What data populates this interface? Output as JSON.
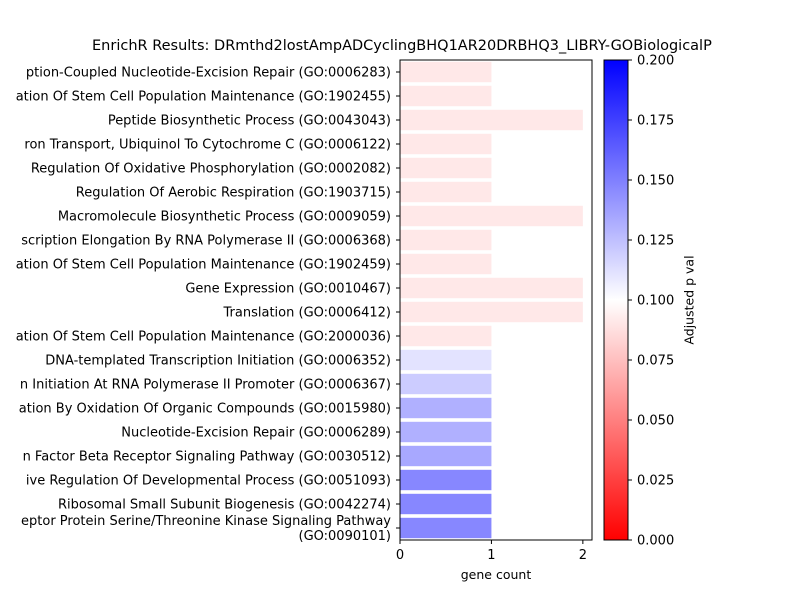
{
  "chart_data": {
    "type": "bar",
    "orientation": "horizontal",
    "title": "EnrichR Results: DRmthd2lostAmpADCyclingBHQ1AR20DRBHQ3_LIBRY-GOBiologicalP",
    "xlabel": "gene count",
    "xlim": [
      0,
      2.1
    ],
    "xticks": [
      0,
      1,
      2
    ],
    "colorbar": {
      "label": "Adjusted p val",
      "range": [
        0,
        0.2
      ],
      "ticks": [
        "0.000",
        "0.025",
        "0.050",
        "0.075",
        "0.100",
        "0.125",
        "0.150",
        "0.175",
        "0.200"
      ],
      "colormap": "bwr_r",
      "colors": {
        "low": "#ff0000",
        "mid": "#ffffff",
        "high": "#0000ff"
      }
    },
    "categories": [
      "ption-Coupled Nucleotide-Excision Repair (GO:0006283)",
      "ation Of Stem Cell Population Maintenance (GO:1902455)",
      "Peptide Biosynthetic Process (GO:0043043)",
      "ron Transport, Ubiquinol To Cytochrome C (GO:0006122)",
      "Regulation Of Oxidative Phosphorylation (GO:0002082)",
      "Regulation Of Aerobic Respiration (GO:1903715)",
      "Macromolecule Biosynthetic Process (GO:0009059)",
      "scription Elongation By RNA Polymerase II (GO:0006368)",
      "ation Of Stem Cell Population Maintenance (GO:1902459)",
      "Gene Expression (GO:0010467)",
      "Translation (GO:0006412)",
      "ation Of Stem Cell Population Maintenance (GO:2000036)",
      "DNA-templated Transcription Initiation (GO:0006352)",
      "n Initiation At RNA Polymerase II Promoter (GO:0006367)",
      "ation By Oxidation Of Organic Compounds (GO:0015980)",
      "Nucleotide-Excision Repair (GO:0006289)",
      "n Factor Beta Receptor Signaling Pathway (GO:0030512)",
      "ive Regulation Of Developmental Process (GO:0051093)",
      "Ribosomal Small Subunit Biogenesis (GO:0042274)",
      "eptor Protein Serine/Threonine Kinase Signaling Pathway\n(GO:0090101)"
    ],
    "values": [
      1,
      1,
      2,
      1,
      1,
      1,
      2,
      1,
      1,
      2,
      2,
      1,
      1,
      1,
      1,
      1,
      1,
      1,
      1,
      1
    ],
    "adjusted_p": [
      0.091,
      0.091,
      0.091,
      0.091,
      0.091,
      0.091,
      0.091,
      0.091,
      0.091,
      0.091,
      0.091,
      0.091,
      0.111,
      0.12,
      0.131,
      0.131,
      0.134,
      0.147,
      0.147,
      0.147
    ]
  }
}
